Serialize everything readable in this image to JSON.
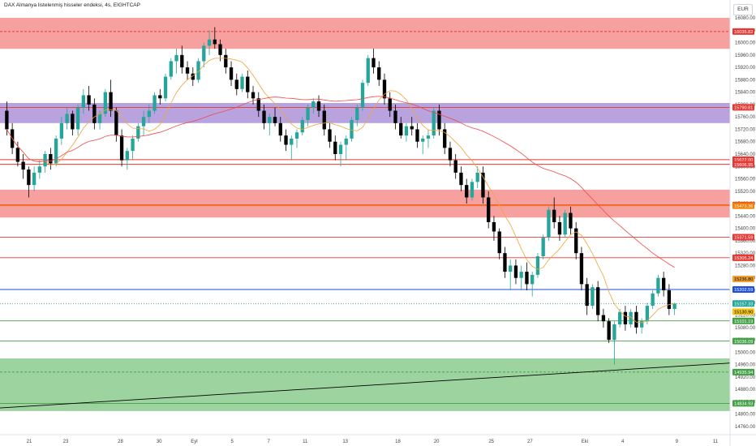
{
  "header": {
    "title": "DAX Almanya listelenmiş hisseler endeksi, 4s, EIGHTCAP",
    "currency": "EUR"
  },
  "colors": {
    "bull": "#26a69a",
    "bear": "#000000",
    "zone_red": "#ef5350",
    "zone_purple": "#7e57c2",
    "zone_green": "#4caf50",
    "ma_fast": "#f2a33a",
    "ma_slow": "#f04a4a",
    "trendline": "#000000"
  },
  "chart_data": {
    "type": "candlestick",
    "y_axis": {
      "min": 14760,
      "max": 16080,
      "ticks": [
        16080,
        16040,
        16000,
        15960,
        15920,
        15880,
        15840,
        15800,
        15760,
        15720,
        15680,
        15640,
        15600,
        15560,
        15520,
        15480,
        15440,
        15400,
        15360,
        15320,
        15280,
        15240,
        15200,
        15160,
        15120,
        15080,
        15040,
        15000,
        14960,
        14920,
        14880,
        14840,
        14800,
        14760
      ],
      "scale": "linear"
    },
    "x_axis": {
      "labels": [
        {
          "text": "21",
          "pos": 0.04
        },
        {
          "text": "23",
          "pos": 0.09
        },
        {
          "text": "28",
          "pos": 0.165
        },
        {
          "text": "30",
          "pos": 0.218
        },
        {
          "text": "Eyl",
          "pos": 0.266
        },
        {
          "text": "5",
          "pos": 0.318
        },
        {
          "text": "7",
          "pos": 0.368
        },
        {
          "text": "11",
          "pos": 0.418
        },
        {
          "text": "13",
          "pos": 0.473
        },
        {
          "text": "18",
          "pos": 0.545
        },
        {
          "text": "20",
          "pos": 0.598
        },
        {
          "text": "25",
          "pos": 0.673
        },
        {
          "text": "27",
          "pos": 0.726
        },
        {
          "text": "Eki",
          "pos": 0.801
        },
        {
          "text": "4",
          "pos": 0.853
        },
        {
          "text": "9",
          "pos": 0.927
        },
        {
          "text": "11",
          "pos": 0.98
        }
      ]
    },
    "zones": [
      {
        "color": "red",
        "top": 16080,
        "bottom": 15980
      },
      {
        "color": "purple",
        "top": 15805,
        "bottom": 15740
      },
      {
        "color": "red",
        "top": 15525,
        "bottom": 15435
      },
      {
        "color": "green",
        "top": 14980,
        "bottom": 14810
      }
    ],
    "price_lines": [
      {
        "value": 16035.82,
        "label": "16035.82",
        "color": "#e53935",
        "style": "dashed"
      },
      {
        "value": 15790.81,
        "label": "15790.81",
        "color": "#e53935",
        "style": "solid"
      },
      {
        "value": 15622.0,
        "label": "15622.00",
        "color": "#e53935",
        "style": "solid"
      },
      {
        "value": 15606.95,
        "label": "15606.95",
        "color": "#e53935",
        "style": "solid"
      },
      {
        "value": 15475.49,
        "label": "15475.49",
        "color": "#e53935",
        "style": "solid"
      },
      {
        "value": 15473.36,
        "label": "15473.36",
        "color": "#f57c00",
        "style": "solid"
      },
      {
        "value": 15371.59,
        "label": "15371.59",
        "color": "#e53935",
        "style": "solid"
      },
      {
        "value": 15305.24,
        "label": "15305.24",
        "color": "#e53935",
        "style": "solid"
      },
      {
        "value": 15236.8,
        "label": "15236.80",
        "color": "#f0a030",
        "style": "none"
      },
      {
        "value": 15202.59,
        "label": "15202.59",
        "color": "#1e4fd8",
        "style": "solid"
      },
      {
        "value": 15157.33,
        "label": "15157.33",
        "color": "#26a69a",
        "style": "dotted"
      },
      {
        "value": 15130.9,
        "label": "15130.90",
        "color": "#f5c518",
        "style": "none"
      },
      {
        "value": 15101.19,
        "label": "15101.19",
        "color": "#43a047",
        "style": "solid"
      },
      {
        "value": 15036.09,
        "label": "15036.09",
        "color": "#43a047",
        "style": "solid"
      },
      {
        "value": 14935.94,
        "label": "14935.94",
        "color": "#43a047",
        "style": "dashed"
      },
      {
        "value": 14834.93,
        "label": "14834.93",
        "color": "#43a047",
        "style": "solid"
      }
    ],
    "trendline": {
      "x": [
        0.0,
        1.0
      ],
      "y": [
        14820,
        14965
      ]
    },
    "candles": [
      [
        15780,
        15810,
        15700,
        15720
      ],
      [
        15720,
        15740,
        15640,
        15660
      ],
      [
        15660,
        15680,
        15600,
        15615
      ],
      [
        15615,
        15640,
        15560,
        15590
      ],
      [
        15590,
        15600,
        15500,
        15540
      ],
      [
        15540,
        15600,
        15520,
        15580
      ],
      [
        15580,
        15620,
        15560,
        15600
      ],
      [
        15600,
        15650,
        15580,
        15640
      ],
      [
        15640,
        15660,
        15590,
        15610
      ],
      [
        15610,
        15700,
        15600,
        15690
      ],
      [
        15690,
        15760,
        15670,
        15740
      ],
      [
        15740,
        15790,
        15720,
        15770
      ],
      [
        15770,
        15780,
        15700,
        15720
      ],
      [
        15720,
        15800,
        15700,
        15790
      ],
      [
        15790,
        15850,
        15770,
        15830
      ],
      [
        15830,
        15860,
        15780,
        15800
      ],
      [
        15800,
        15820,
        15720,
        15740
      ],
      [
        15740,
        15780,
        15720,
        15770
      ],
      [
        15770,
        15850,
        15760,
        15840
      ],
      [
        15840,
        15880,
        15760,
        15780
      ],
      [
        15780,
        15790,
        15680,
        15700
      ],
      [
        15700,
        15720,
        15600,
        15620
      ],
      [
        15620,
        15660,
        15590,
        15650
      ],
      [
        15650,
        15700,
        15620,
        15690
      ],
      [
        15690,
        15740,
        15680,
        15730
      ],
      [
        15730,
        15780,
        15700,
        15760
      ],
      [
        15760,
        15800,
        15740,
        15780
      ],
      [
        15780,
        15840,
        15770,
        15830
      ],
      [
        15830,
        15850,
        15800,
        15820
      ],
      [
        15820,
        15900,
        15810,
        15890
      ],
      [
        15890,
        15950,
        15880,
        15940
      ],
      [
        15940,
        15980,
        15900,
        15960
      ],
      [
        15960,
        15990,
        15900,
        15920
      ],
      [
        15920,
        15940,
        15880,
        15900
      ],
      [
        15900,
        15920,
        15860,
        15880
      ],
      [
        15880,
        15950,
        15870,
        15940
      ],
      [
        15940,
        16000,
        15920,
        15990
      ],
      [
        15990,
        16040,
        15960,
        16010
      ],
      [
        16010,
        16050,
        15980,
        15995
      ],
      [
        15995,
        16010,
        15940,
        15960
      ],
      [
        15960,
        15980,
        15900,
        15920
      ],
      [
        15920,
        15940,
        15860,
        15880
      ],
      [
        15880,
        15900,
        15830,
        15850
      ],
      [
        15850,
        15900,
        15840,
        15890
      ],
      [
        15890,
        15910,
        15820,
        15840
      ],
      [
        15840,
        15860,
        15800,
        15820
      ],
      [
        15820,
        15840,
        15760,
        15780
      ],
      [
        15780,
        15800,
        15720,
        15740
      ],
      [
        15740,
        15770,
        15700,
        15760
      ],
      [
        15760,
        15790,
        15730,
        15740
      ],
      [
        15740,
        15760,
        15680,
        15700
      ],
      [
        15700,
        15720,
        15650,
        15670
      ],
      [
        15670,
        15700,
        15620,
        15690
      ],
      [
        15690,
        15720,
        15660,
        15710
      ],
      [
        15710,
        15760,
        15700,
        15750
      ],
      [
        15750,
        15800,
        15730,
        15790
      ],
      [
        15790,
        15820,
        15770,
        15810
      ],
      [
        15810,
        15830,
        15760,
        15780
      ],
      [
        15780,
        15800,
        15700,
        15720
      ],
      [
        15720,
        15740,
        15660,
        15680
      ],
      [
        15680,
        15700,
        15620,
        15640
      ],
      [
        15640,
        15680,
        15600,
        15670
      ],
      [
        15670,
        15700,
        15620,
        15690
      ],
      [
        15690,
        15760,
        15680,
        15750
      ],
      [
        15750,
        15800,
        15730,
        15790
      ],
      [
        15790,
        15880,
        15780,
        15870
      ],
      [
        15870,
        15960,
        15860,
        15950
      ],
      [
        15950,
        15980,
        15900,
        15920
      ],
      [
        15920,
        15940,
        15860,
        15880
      ],
      [
        15880,
        15900,
        15800,
        15820
      ],
      [
        15820,
        15840,
        15760,
        15780
      ],
      [
        15780,
        15800,
        15720,
        15740
      ],
      [
        15740,
        15760,
        15690,
        15700
      ],
      [
        15700,
        15740,
        15680,
        15730
      ],
      [
        15730,
        15760,
        15700,
        15720
      ],
      [
        15720,
        15740,
        15660,
        15680
      ],
      [
        15680,
        15700,
        15640,
        15690
      ],
      [
        15690,
        15720,
        15660,
        15700
      ],
      [
        15700,
        15790,
        15690,
        15780
      ],
      [
        15780,
        15800,
        15700,
        15720
      ],
      [
        15720,
        15740,
        15640,
        15660
      ],
      [
        15660,
        15680,
        15600,
        15620
      ],
      [
        15620,
        15640,
        15560,
        15580
      ],
      [
        15580,
        15600,
        15520,
        15540
      ],
      [
        15540,
        15560,
        15480,
        15500
      ],
      [
        15500,
        15560,
        15490,
        15550
      ],
      [
        15550,
        15600,
        15530,
        15580
      ],
      [
        15580,
        15600,
        15480,
        15500
      ],
      [
        15500,
        15520,
        15400,
        15420
      ],
      [
        15420,
        15440,
        15360,
        15390
      ],
      [
        15390,
        15400,
        15300,
        15320
      ],
      [
        15320,
        15340,
        15240,
        15260
      ],
      [
        15260,
        15300,
        15200,
        15280
      ],
      [
        15280,
        15300,
        15220,
        15240
      ],
      [
        15240,
        15280,
        15200,
        15260
      ],
      [
        15260,
        15290,
        15200,
        15220
      ],
      [
        15220,
        15260,
        15180,
        15250
      ],
      [
        15250,
        15320,
        15240,
        15310
      ],
      [
        15310,
        15380,
        15300,
        15370
      ],
      [
        15370,
        15470,
        15360,
        15460
      ],
      [
        15460,
        15500,
        15400,
        15420
      ],
      [
        15420,
        15440,
        15360,
        15380
      ],
      [
        15380,
        15460,
        15370,
        15450
      ],
      [
        15450,
        15470,
        15380,
        15400
      ],
      [
        15400,
        15420,
        15300,
        15320
      ],
      [
        15320,
        15340,
        15200,
        15220
      ],
      [
        15220,
        15240,
        15120,
        15150
      ],
      [
        15150,
        15220,
        15140,
        15210
      ],
      [
        15210,
        15230,
        15100,
        15120
      ],
      [
        15120,
        15140,
        15080,
        15100
      ],
      [
        15100,
        15110,
        15030,
        15040
      ],
      [
        15040,
        15100,
        14960,
        15090
      ],
      [
        15090,
        15140,
        15080,
        15130
      ],
      [
        15130,
        15150,
        15070,
        15090
      ],
      [
        15090,
        15140,
        15080,
        15130
      ],
      [
        15130,
        15150,
        15060,
        15080
      ],
      [
        15080,
        15110,
        15060,
        15100
      ],
      [
        15100,
        15160,
        15090,
        15150
      ],
      [
        15150,
        15200,
        15140,
        15190
      ],
      [
        15190,
        15250,
        15180,
        15240
      ],
      [
        15240,
        15260,
        15180,
        15200
      ],
      [
        15200,
        15220,
        15120,
        15140
      ],
      [
        15140,
        15160,
        15120,
        15157.33
      ]
    ]
  }
}
